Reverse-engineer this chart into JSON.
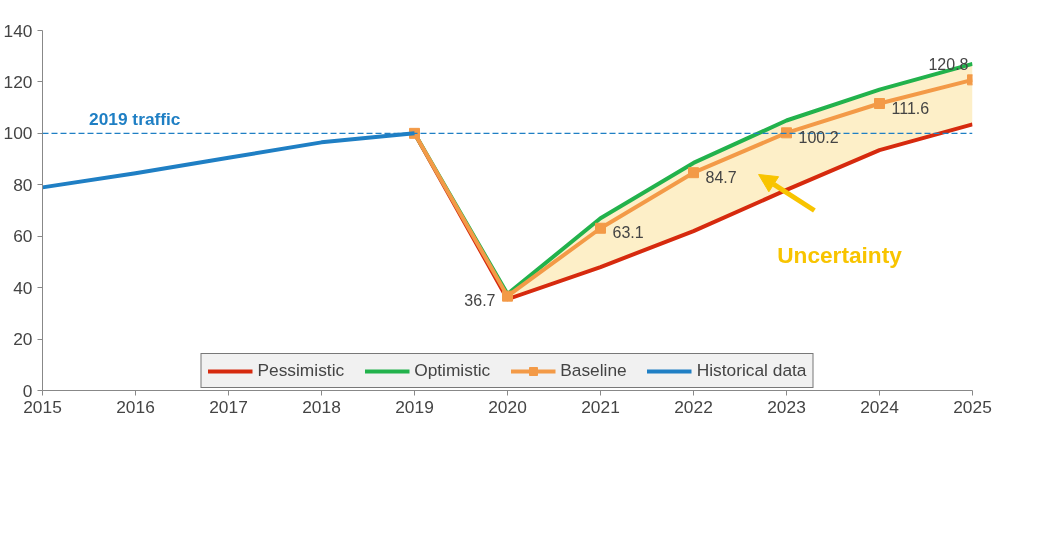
{
  "chart_data": {
    "type": "line",
    "x": [
      2015,
      2016,
      2017,
      2018,
      2019,
      2020,
      2021,
      2022,
      2023,
      2024,
      2025
    ],
    "xlim": [
      2015,
      2025
    ],
    "xticks": [
      2015,
      2016,
      2017,
      2018,
      2019,
      2020,
      2021,
      2022,
      2023,
      2024,
      2025
    ],
    "ylim": [
      0,
      140
    ],
    "yticks": [
      0,
      20,
      40,
      60,
      80,
      100,
      120,
      140
    ],
    "grid": false,
    "legend": "bottom",
    "line_style": "solid",
    "series": [
      {
        "name": "Pessimistic",
        "color": "#d62a0e",
        "marker": "none",
        "values": [
          null,
          null,
          null,
          null,
          100,
          35.5,
          48,
          62,
          78,
          93.5,
          103.5
        ]
      },
      {
        "name": "Optimistic",
        "color": "#22b24c",
        "marker": "none",
        "values": [
          null,
          null,
          null,
          null,
          100,
          37.5,
          67,
          88.5,
          105,
          117,
          127
        ]
      },
      {
        "name": "Baseline",
        "color": "#f39a47",
        "marker": "square",
        "values": [
          null,
          null,
          null,
          null,
          100,
          36.7,
          63.1,
          84.7,
          100.2,
          111.6,
          120.8
        ],
        "lower": [
          null,
          null,
          null,
          null,
          null,
          35.5,
          48,
          62,
          78,
          93.5,
          103.5
        ],
        "upper": [
          null,
          null,
          null,
          null,
          null,
          37.5,
          67,
          88.5,
          105,
          117,
          127
        ],
        "value_labels": [
          null,
          null,
          null,
          null,
          null,
          "36.7",
          "63.1",
          "84.7",
          "100.2",
          "111.6",
          "120.8"
        ]
      },
      {
        "name": "Historical data",
        "color": "#1f7fc4",
        "marker": "none",
        "values": [
          79,
          84.5,
          90.5,
          96.5,
          100,
          null,
          null,
          null,
          null,
          null,
          null
        ]
      }
    ],
    "ref_lines": [
      {
        "axis": "y",
        "value": 100,
        "label": "2019 traffic",
        "color": "#1f7fc4",
        "line_style": "dashed"
      }
    ],
    "annotations": [
      "Uncertainty"
    ]
  }
}
